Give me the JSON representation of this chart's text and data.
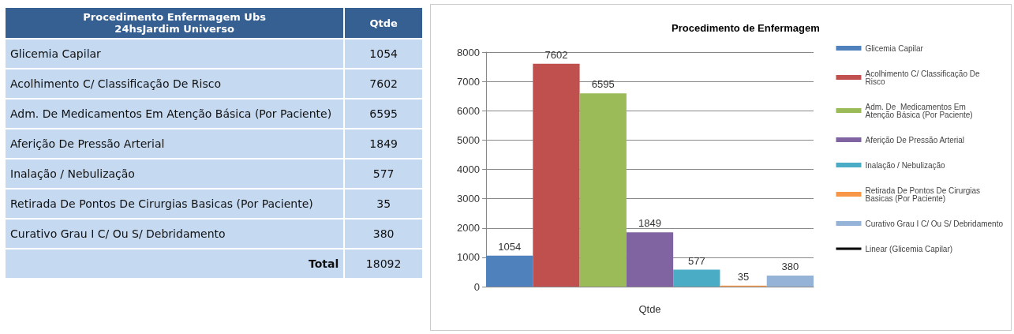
{
  "chart_data": [
    {
      "type": "other",
      "title": "Procedimento Enfermagem Ubs 24hsJardim Universo",
      "xlabel": "Qtde",
      "categories": [
        "Glicemia Capilar",
        "Acolhimento C/ Classificação De Risco",
        "Adm. De  Medicamentos Em Atenção Básica (Por Paciente)",
        "Aferição De Pressão Arterial",
        "Inalação / Nebulização",
        "Retirada De Pontos De Cirurgias Basicas (Por Paciente)",
        "Curativo Grau I C/ Ou S/ Debridamento"
      ],
      "value_labels": [
        "1054",
        "7602",
        "6595",
        "1849",
        "577",
        "35",
        "380"
      ],
      "annotations": [
        "Total",
        "18092"
      ]
    },
    {
      "type": "bar",
      "title": "Procedimento de Enfermagem",
      "xlabel": "Qtde",
      "categories": [
        null,
        null,
        null,
        null,
        null,
        null,
        null
      ],
      "series": [
        {
          "name": "Glicemia Capilar",
          "color": "#4f81bd",
          "values": [
            1054,
            null,
            null,
            null,
            null,
            null,
            null
          ]
        },
        {
          "name": "Acolhimento C/ Classificação De Risco",
          "color": "#c0504d",
          "values": [
            null,
            7602,
            null,
            null,
            null,
            null,
            null
          ]
        },
        {
          "name": "Adm. De  Medicamentos Em Atenção Básica (Por Paciente)",
          "color": "#9bbb59",
          "values": [
            null,
            null,
            6595,
            null,
            null,
            null,
            null
          ]
        },
        {
          "name": "Aferição De Pressão Arterial",
          "color": "#8064a2",
          "values": [
            null,
            null,
            null,
            1849,
            null,
            null,
            null
          ]
        },
        {
          "name": "Inalação / Nebulização",
          "color": "#4bacc6",
          "values": [
            null,
            null,
            null,
            null,
            577,
            null,
            null
          ]
        },
        {
          "name": "Retirada De Pontos De Cirurgias Basicas (Por Paciente)",
          "color": "#f79646",
          "values": [
            null,
            null,
            null,
            null,
            null,
            35,
            null
          ]
        },
        {
          "name": "Curativo Grau I C/ Ou S/ Debridamento",
          "color": "#95b3d7",
          "values": [
            null,
            null,
            null,
            null,
            null,
            null,
            380
          ]
        },
        {
          "name": "Linear (Glicemia Capilar)",
          "type": "line",
          "color": "#000000",
          "values": [
            null,
            null,
            null,
            null,
            null,
            null,
            null
          ]
        }
      ],
      "ylim": [
        0,
        8000
      ],
      "yticks": [
        0,
        1000,
        2000,
        3000,
        4000,
        5000,
        6000,
        7000,
        8000
      ],
      "grid": "y",
      "legend": "right",
      "data_labels": true
    }
  ]
}
